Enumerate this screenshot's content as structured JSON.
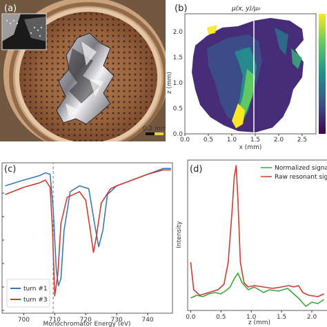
{
  "labels": {
    "a": "(a)",
    "b": "(b)",
    "c": "(c)",
    "d": "(d)"
  },
  "panel_a": {
    "scale_bar": "0.2 mm"
  },
  "panel_b": {
    "title": "μ(x, y)/μ₀",
    "xlabel": "x (mm)",
    "ylabel": "z (mm)",
    "xticks": [
      "0.0",
      "0.5",
      "1.0",
      "1.5",
      "2.0",
      "2.5"
    ],
    "yticks": [
      "0.0",
      "0.5",
      "1.0",
      "1.5",
      "2.0"
    ]
  },
  "chart_data": [
    {
      "type": "line",
      "panel": "c",
      "xlabel": "Monochromator Energy (eV)",
      "xticks": [
        "700",
        "710",
        "720",
        "730",
        "740"
      ],
      "xlim": [
        693,
        748
      ],
      "ylim": [
        0,
        1
      ],
      "series": [
        {
          "name": "turn #1",
          "color": "#3a78b5",
          "x": [
            694,
            700,
            705,
            707,
            708.5,
            709.5,
            710.5,
            711.2,
            712,
            713,
            715,
            718,
            721,
            723,
            724.2,
            725.5,
            727,
            730,
            735,
            740,
            745,
            747.5
          ],
          "y": [
            0.86,
            0.9,
            0.93,
            0.95,
            0.94,
            0.7,
            0.28,
            0.17,
            0.22,
            0.55,
            0.82,
            0.86,
            0.84,
            0.58,
            0.44,
            0.55,
            0.8,
            0.86,
            0.9,
            0.94,
            0.98,
            0.98
          ]
        },
        {
          "name": "turn #3",
          "color": "#d03a2e",
          "x": [
            694,
            700,
            705,
            707,
            708.5,
            709.3,
            710,
            711,
            712,
            714,
            718,
            720,
            721.5,
            722.5,
            723.5,
            725,
            728,
            730,
            735,
            740,
            745,
            747.5
          ],
          "y": [
            0.8,
            0.85,
            0.88,
            0.9,
            0.85,
            0.55,
            0.1,
            0.25,
            0.6,
            0.78,
            0.82,
            0.76,
            0.55,
            0.4,
            0.52,
            0.74,
            0.84,
            0.86,
            0.9,
            0.94,
            0.97,
            0.97
          ]
        }
      ],
      "vline_x": 709.5
    },
    {
      "type": "line",
      "panel": "d",
      "xlabel": "z (mm)",
      "ylabel": "Intensity",
      "xticks": [
        "0.0",
        "0.5",
        "1.0",
        "1.5",
        "2.0"
      ],
      "xlim": [
        -0.05,
        2.25
      ],
      "ylim": [
        0,
        1
      ],
      "series": [
        {
          "name": "Normalized signal",
          "color": "#3aa63a",
          "x": [
            0.0,
            0.1,
            0.2,
            0.3,
            0.4,
            0.5,
            0.6,
            0.65,
            0.72,
            0.78,
            0.85,
            0.95,
            1.05,
            1.2,
            1.3,
            1.45,
            1.6,
            1.7,
            1.8,
            1.9,
            2.0,
            2.1,
            2.2
          ],
          "y": [
            0.04,
            0.06,
            0.05,
            0.07,
            0.08,
            0.07,
            0.1,
            0.12,
            0.18,
            0.22,
            0.15,
            0.1,
            0.12,
            0.08,
            0.1,
            0.09,
            0.11,
            0.07,
            0.03,
            -0.02,
            0.01,
            0.0,
            0.03
          ]
        },
        {
          "name": "Raw resonant signal",
          "color": "#d03a2e",
          "x": [
            0.0,
            0.05,
            0.15,
            0.3,
            0.45,
            0.55,
            0.62,
            0.68,
            0.72,
            0.75,
            0.78,
            0.82,
            0.88,
            0.95,
            1.05,
            1.2,
            1.35,
            1.5,
            1.62,
            1.7,
            1.78,
            1.85,
            1.95,
            2.1,
            2.2
          ],
          "y": [
            0.3,
            0.1,
            0.06,
            0.08,
            0.1,
            0.14,
            0.3,
            0.65,
            0.92,
            1.0,
            0.75,
            0.3,
            0.15,
            0.12,
            0.13,
            0.12,
            0.11,
            0.12,
            0.13,
            0.12,
            0.13,
            0.08,
            0.06,
            0.05,
            0.07
          ]
        }
      ]
    }
  ]
}
